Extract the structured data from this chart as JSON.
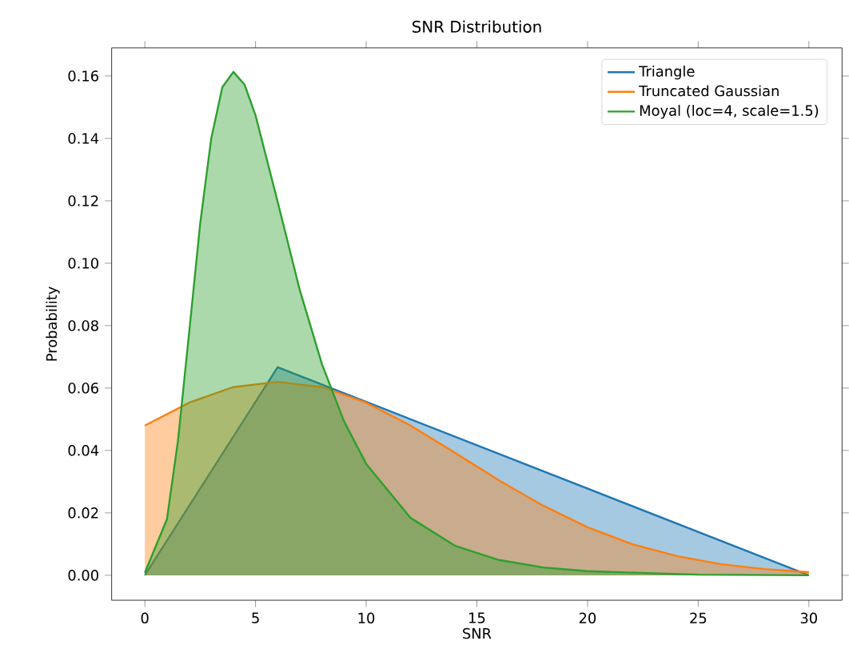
{
  "chart_data": {
    "type": "area",
    "title": "SNR Distribution",
    "xlabel": "SNR",
    "ylabel": "Probability",
    "xlim": [
      -1.5,
      31.5
    ],
    "ylim": [
      -0.008,
      0.169
    ],
    "xticks": [
      0,
      5,
      10,
      15,
      20,
      25,
      30
    ],
    "yticks": [
      {
        "value": 0,
        "label": "0.00"
      },
      {
        "value": 0.02,
        "label": "0.02"
      },
      {
        "value": 0.04,
        "label": "0.04"
      },
      {
        "value": 0.06,
        "label": "0.06"
      },
      {
        "value": 0.08,
        "label": "0.08"
      },
      {
        "value": 0.1,
        "label": "0.10"
      },
      {
        "value": 0.12,
        "label": "0.12"
      },
      {
        "value": 0.14,
        "label": "0.14"
      },
      {
        "value": 0.16,
        "label": "0.16"
      }
    ],
    "legend": "top right",
    "grid": false,
    "series": [
      {
        "name": "Triangle",
        "color": "#1f77b4",
        "x": [
          0,
          6,
          30
        ],
        "values": [
          0,
          0.0667,
          0
        ]
      },
      {
        "name": "Truncated Gaussian",
        "color": "#ff7f0e",
        "x": [
          0,
          2,
          4,
          6,
          8,
          10,
          12,
          14,
          16,
          18,
          20,
          22,
          24,
          26,
          28,
          30
        ],
        "values": [
          0.048,
          0.0553,
          0.0603,
          0.062,
          0.0603,
          0.0553,
          0.048,
          0.0393,
          0.0304,
          0.0223,
          0.0154,
          0.01,
          0.0062,
          0.0036,
          0.002,
          0.001
        ]
      },
      {
        "name": "Moyal (loc=4, scale=1.5)",
        "color": "#2ca02c",
        "x": [
          0,
          1,
          1.5,
          2,
          2.5,
          3,
          3.5,
          4,
          4.5,
          5,
          6,
          7,
          8,
          9,
          10,
          12,
          14,
          16,
          18,
          20,
          25,
          30
        ],
        "values": [
          0.0008,
          0.018,
          0.0433,
          0.0777,
          0.1127,
          0.14,
          0.1564,
          0.1613,
          0.1573,
          0.1474,
          0.1197,
          0.0914,
          0.0677,
          0.0493,
          0.0357,
          0.0184,
          0.0095,
          0.0049,
          0.0025,
          0.0013,
          0.0002,
          0
        ]
      }
    ]
  }
}
